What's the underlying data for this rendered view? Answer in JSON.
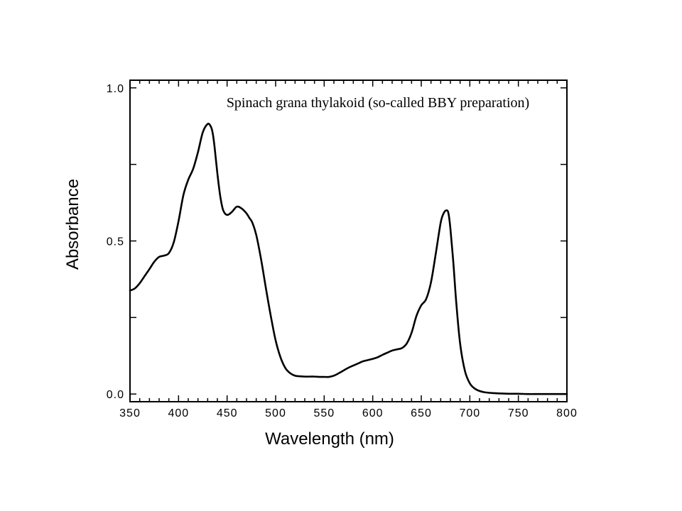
{
  "chart_data": {
    "type": "line",
    "title": "",
    "annotation": "Spinach grana thylakoid (so-called BBY preparation)",
    "xlabel": "Wavelength (nm)",
    "ylabel": "Absorbance",
    "xlim": [
      350,
      800
    ],
    "ylim": [
      -0.025,
      1.025
    ],
    "x_ticks": [
      350,
      400,
      450,
      500,
      550,
      600,
      650,
      700,
      750,
      800
    ],
    "x_tick_labels": [
      "350",
      "400",
      "450",
      "500",
      "550",
      "600",
      "650",
      "700",
      "750",
      "800"
    ],
    "y_ticks": [
      0.0,
      0.5,
      1.0
    ],
    "y_tick_labels": [
      "0.0",
      "0.5",
      "1.0"
    ],
    "grid": false,
    "legend": "none",
    "colors": {
      "line": "#000000",
      "axes": "#000000",
      "background": "#ffffff"
    },
    "series": [
      {
        "x": [
          350,
          355,
          360,
          365,
          370,
          375,
          380,
          385,
          390,
          395,
          400,
          405,
          410,
          415,
          420,
          425,
          430,
          433,
          435,
          437,
          440,
          443,
          446,
          450,
          455,
          460,
          465,
          470,
          473,
          476,
          480,
          485,
          490,
          495,
          500,
          505,
          510,
          515,
          520,
          525,
          530,
          535,
          540,
          545,
          550,
          555,
          560,
          565,
          570,
          575,
          580,
          585,
          590,
          595,
          600,
          605,
          610,
          615,
          620,
          625,
          630,
          635,
          640,
          645,
          650,
          655,
          660,
          665,
          670,
          673,
          676,
          678,
          680,
          683,
          686,
          690,
          695,
          700,
          705,
          710,
          715,
          720,
          725,
          730,
          740,
          750,
          760,
          770,
          780,
          790,
          800
        ],
        "y": [
          0.338,
          0.345,
          0.362,
          0.385,
          0.408,
          0.432,
          0.448,
          0.452,
          0.46,
          0.495,
          0.565,
          0.65,
          0.7,
          0.735,
          0.79,
          0.855,
          0.882,
          0.875,
          0.855,
          0.81,
          0.72,
          0.645,
          0.6,
          0.585,
          0.595,
          0.612,
          0.606,
          0.59,
          0.575,
          0.56,
          0.52,
          0.44,
          0.345,
          0.255,
          0.175,
          0.12,
          0.085,
          0.068,
          0.06,
          0.058,
          0.057,
          0.057,
          0.057,
          0.056,
          0.056,
          0.056,
          0.06,
          0.068,
          0.077,
          0.086,
          0.093,
          0.1,
          0.107,
          0.111,
          0.115,
          0.12,
          0.128,
          0.135,
          0.142,
          0.146,
          0.15,
          0.165,
          0.2,
          0.255,
          0.29,
          0.31,
          0.365,
          0.46,
          0.56,
          0.59,
          0.6,
          0.59,
          0.54,
          0.43,
          0.3,
          0.165,
          0.075,
          0.035,
          0.018,
          0.01,
          0.006,
          0.004,
          0.003,
          0.002,
          0.001,
          0.001,
          0.0,
          0.0,
          0.0,
          0.0,
          0.0
        ]
      }
    ]
  }
}
